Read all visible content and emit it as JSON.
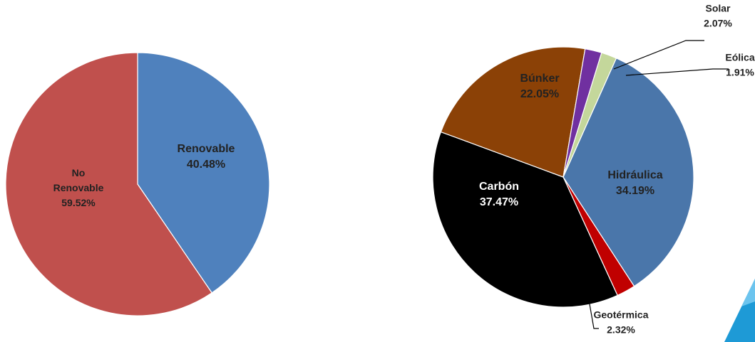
{
  "chart_data": [
    {
      "type": "pie",
      "start_angle_deg": 0,
      "slices": [
        {
          "label_lines": [
            "Renovable"
          ],
          "value": 40.48,
          "value_text": "40.48%",
          "color": "#4f81bd"
        },
        {
          "label_lines": [
            "No",
            "Renovable"
          ],
          "value": 59.52,
          "value_text": "59.52%",
          "color": "#c0504d"
        }
      ]
    },
    {
      "type": "pie",
      "start_angle_deg": 24,
      "slices": [
        {
          "label_lines": [
            "Hidráulica"
          ],
          "value": 34.19,
          "value_text": "34.19%",
          "color": "#4a76aa"
        },
        {
          "label_lines": [
            "Geotérmica"
          ],
          "value": 2.32,
          "value_text": "2.32%",
          "color": "#c00000"
        },
        {
          "label_lines": [
            "Carbón"
          ],
          "value": 37.47,
          "value_text": "37.47%",
          "color": "#000000"
        },
        {
          "label_lines": [
            "Búnker"
          ],
          "value": 22.05,
          "value_text": "22.05%",
          "color": "#8b4106"
        },
        {
          "label_lines": [
            "Solar"
          ],
          "value": 2.07,
          "value_text": "2.07%",
          "color": "#7030a0"
        },
        {
          "label_lines": [
            "Eólica"
          ],
          "value": 1.91,
          "value_text": "1.91%",
          "color": "#c4d79b"
        }
      ]
    }
  ],
  "decoration": {
    "corner_color": "#1e9ad6",
    "corner_color_light": "#6cc4ee"
  }
}
